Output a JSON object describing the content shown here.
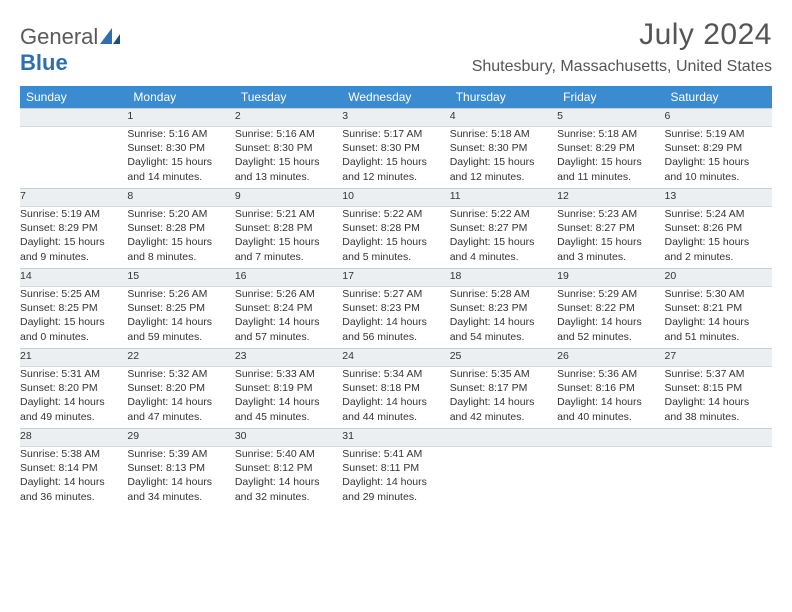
{
  "brand": {
    "part1": "General",
    "part2": "Blue"
  },
  "title": "July 2024",
  "location": "Shutesbury, Massachusetts, United States",
  "colors": {
    "header_bg": "#3b8bd0",
    "header_text": "#ffffff",
    "daynum_bg": "#eceff1",
    "text": "#333333",
    "brand_gray": "#5a5a5a",
    "brand_blue": "#2f6fb0"
  },
  "weekdays": [
    "Sunday",
    "Monday",
    "Tuesday",
    "Wednesday",
    "Thursday",
    "Friday",
    "Saturday"
  ],
  "weeks": [
    [
      null,
      {
        "d": "1",
        "sr": "Sunrise: 5:16 AM",
        "ss": "Sunset: 8:30 PM",
        "dl1": "Daylight: 15 hours",
        "dl2": "and 14 minutes."
      },
      {
        "d": "2",
        "sr": "Sunrise: 5:16 AM",
        "ss": "Sunset: 8:30 PM",
        "dl1": "Daylight: 15 hours",
        "dl2": "and 13 minutes."
      },
      {
        "d": "3",
        "sr": "Sunrise: 5:17 AM",
        "ss": "Sunset: 8:30 PM",
        "dl1": "Daylight: 15 hours",
        "dl2": "and 12 minutes."
      },
      {
        "d": "4",
        "sr": "Sunrise: 5:18 AM",
        "ss": "Sunset: 8:30 PM",
        "dl1": "Daylight: 15 hours",
        "dl2": "and 12 minutes."
      },
      {
        "d": "5",
        "sr": "Sunrise: 5:18 AM",
        "ss": "Sunset: 8:29 PM",
        "dl1": "Daylight: 15 hours",
        "dl2": "and 11 minutes."
      },
      {
        "d": "6",
        "sr": "Sunrise: 5:19 AM",
        "ss": "Sunset: 8:29 PM",
        "dl1": "Daylight: 15 hours",
        "dl2": "and 10 minutes."
      }
    ],
    [
      {
        "d": "7",
        "sr": "Sunrise: 5:19 AM",
        "ss": "Sunset: 8:29 PM",
        "dl1": "Daylight: 15 hours",
        "dl2": "and 9 minutes."
      },
      {
        "d": "8",
        "sr": "Sunrise: 5:20 AM",
        "ss": "Sunset: 8:28 PM",
        "dl1": "Daylight: 15 hours",
        "dl2": "and 8 minutes."
      },
      {
        "d": "9",
        "sr": "Sunrise: 5:21 AM",
        "ss": "Sunset: 8:28 PM",
        "dl1": "Daylight: 15 hours",
        "dl2": "and 7 minutes."
      },
      {
        "d": "10",
        "sr": "Sunrise: 5:22 AM",
        "ss": "Sunset: 8:28 PM",
        "dl1": "Daylight: 15 hours",
        "dl2": "and 5 minutes."
      },
      {
        "d": "11",
        "sr": "Sunrise: 5:22 AM",
        "ss": "Sunset: 8:27 PM",
        "dl1": "Daylight: 15 hours",
        "dl2": "and 4 minutes."
      },
      {
        "d": "12",
        "sr": "Sunrise: 5:23 AM",
        "ss": "Sunset: 8:27 PM",
        "dl1": "Daylight: 15 hours",
        "dl2": "and 3 minutes."
      },
      {
        "d": "13",
        "sr": "Sunrise: 5:24 AM",
        "ss": "Sunset: 8:26 PM",
        "dl1": "Daylight: 15 hours",
        "dl2": "and 2 minutes."
      }
    ],
    [
      {
        "d": "14",
        "sr": "Sunrise: 5:25 AM",
        "ss": "Sunset: 8:25 PM",
        "dl1": "Daylight: 15 hours",
        "dl2": "and 0 minutes."
      },
      {
        "d": "15",
        "sr": "Sunrise: 5:26 AM",
        "ss": "Sunset: 8:25 PM",
        "dl1": "Daylight: 14 hours",
        "dl2": "and 59 minutes."
      },
      {
        "d": "16",
        "sr": "Sunrise: 5:26 AM",
        "ss": "Sunset: 8:24 PM",
        "dl1": "Daylight: 14 hours",
        "dl2": "and 57 minutes."
      },
      {
        "d": "17",
        "sr": "Sunrise: 5:27 AM",
        "ss": "Sunset: 8:23 PM",
        "dl1": "Daylight: 14 hours",
        "dl2": "and 56 minutes."
      },
      {
        "d": "18",
        "sr": "Sunrise: 5:28 AM",
        "ss": "Sunset: 8:23 PM",
        "dl1": "Daylight: 14 hours",
        "dl2": "and 54 minutes."
      },
      {
        "d": "19",
        "sr": "Sunrise: 5:29 AM",
        "ss": "Sunset: 8:22 PM",
        "dl1": "Daylight: 14 hours",
        "dl2": "and 52 minutes."
      },
      {
        "d": "20",
        "sr": "Sunrise: 5:30 AM",
        "ss": "Sunset: 8:21 PM",
        "dl1": "Daylight: 14 hours",
        "dl2": "and 51 minutes."
      }
    ],
    [
      {
        "d": "21",
        "sr": "Sunrise: 5:31 AM",
        "ss": "Sunset: 8:20 PM",
        "dl1": "Daylight: 14 hours",
        "dl2": "and 49 minutes."
      },
      {
        "d": "22",
        "sr": "Sunrise: 5:32 AM",
        "ss": "Sunset: 8:20 PM",
        "dl1": "Daylight: 14 hours",
        "dl2": "and 47 minutes."
      },
      {
        "d": "23",
        "sr": "Sunrise: 5:33 AM",
        "ss": "Sunset: 8:19 PM",
        "dl1": "Daylight: 14 hours",
        "dl2": "and 45 minutes."
      },
      {
        "d": "24",
        "sr": "Sunrise: 5:34 AM",
        "ss": "Sunset: 8:18 PM",
        "dl1": "Daylight: 14 hours",
        "dl2": "and 44 minutes."
      },
      {
        "d": "25",
        "sr": "Sunrise: 5:35 AM",
        "ss": "Sunset: 8:17 PM",
        "dl1": "Daylight: 14 hours",
        "dl2": "and 42 minutes."
      },
      {
        "d": "26",
        "sr": "Sunrise: 5:36 AM",
        "ss": "Sunset: 8:16 PM",
        "dl1": "Daylight: 14 hours",
        "dl2": "and 40 minutes."
      },
      {
        "d": "27",
        "sr": "Sunrise: 5:37 AM",
        "ss": "Sunset: 8:15 PM",
        "dl1": "Daylight: 14 hours",
        "dl2": "and 38 minutes."
      }
    ],
    [
      {
        "d": "28",
        "sr": "Sunrise: 5:38 AM",
        "ss": "Sunset: 8:14 PM",
        "dl1": "Daylight: 14 hours",
        "dl2": "and 36 minutes."
      },
      {
        "d": "29",
        "sr": "Sunrise: 5:39 AM",
        "ss": "Sunset: 8:13 PM",
        "dl1": "Daylight: 14 hours",
        "dl2": "and 34 minutes."
      },
      {
        "d": "30",
        "sr": "Sunrise: 5:40 AM",
        "ss": "Sunset: 8:12 PM",
        "dl1": "Daylight: 14 hours",
        "dl2": "and 32 minutes."
      },
      {
        "d": "31",
        "sr": "Sunrise: 5:41 AM",
        "ss": "Sunset: 8:11 PM",
        "dl1": "Daylight: 14 hours",
        "dl2": "and 29 minutes."
      },
      null,
      null,
      null
    ]
  ]
}
